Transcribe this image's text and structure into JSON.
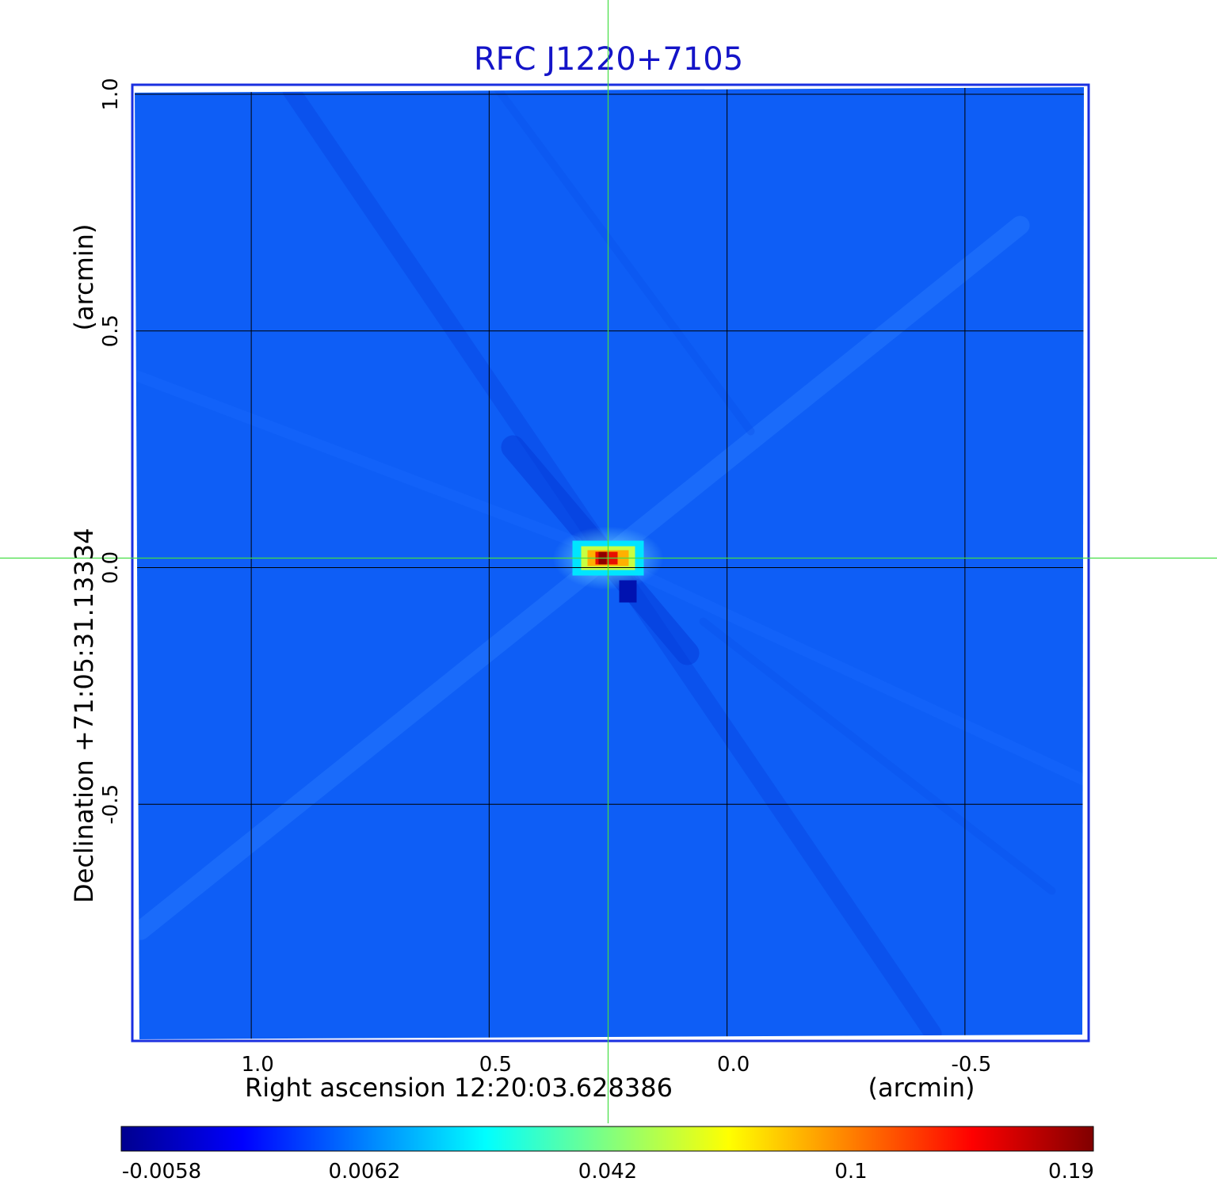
{
  "chart_data": {
    "type": "heatmap",
    "title": "RFC J1220+7105",
    "xlabel": "Right ascension  12:20:03.628386",
    "xunit": "(arcmin)",
    "ylabel": "Declination  +71:05:31.13334",
    "yunit": "(arcmin)",
    "xlim": [
      1.25,
      -0.76
    ],
    "ylim": [
      -1.0,
      1.02
    ],
    "x_ticks": [
      1.0,
      0.5,
      0.0,
      -0.5
    ],
    "x_tick_labels": [
      "1.0",
      "0.5",
      "0.0",
      "-0.5"
    ],
    "y_ticks": [
      1.0,
      0.5,
      0.0,
      -0.5
    ],
    "y_tick_labels": [
      "1.0",
      "0.5",
      "0.0",
      "-0.5"
    ],
    "grid": true,
    "crosshair": {
      "x": 0.25,
      "y": 0.02,
      "color": "#44dd44"
    },
    "colorbar": {
      "tick_labels": [
        "-0.0058",
        "0.0062",
        "0.042",
        "0.1",
        "0.19"
      ],
      "colors": [
        "#00008f",
        "#0000ff",
        "#0080ff",
        "#00ffff",
        "#80ff80",
        "#ffff00",
        "#ff8000",
        "#ff0000",
        "#800000"
      ]
    },
    "background_color": "#0e5ef6",
    "frame_color": "#1a2fe0",
    "title_color": "#1414c8",
    "source": {
      "x": 0.25,
      "y": 0.02,
      "peak": 0.19
    }
  }
}
